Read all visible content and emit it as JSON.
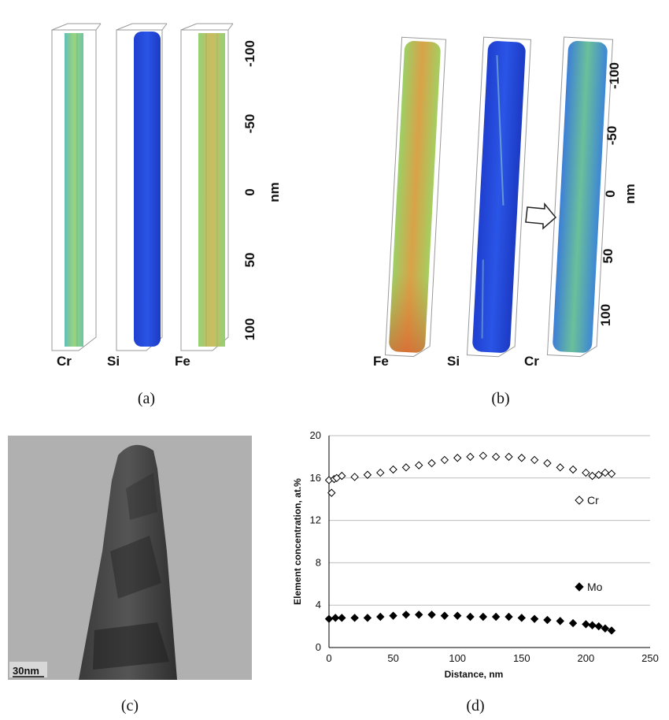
{
  "panel_a": {
    "caption": "(a)",
    "elements": [
      "Cr",
      "Si",
      "Fe"
    ],
    "axis_ticks": [
      "-100",
      "-50",
      "0",
      "50",
      "100"
    ],
    "axis_unit": "nm"
  },
  "panel_b": {
    "caption": "(b)",
    "elements": [
      "Fe",
      "Si",
      "Cr"
    ],
    "axis_ticks": [
      "-100",
      "-50",
      "0",
      "50",
      "100"
    ],
    "axis_unit": "nm"
  },
  "panel_c": {
    "caption": "(c)",
    "scale_bar": "30nm"
  },
  "panel_d": {
    "caption": "(d)"
  },
  "chart_data": {
    "type": "scatter",
    "xlabel": "Distance, nm",
    "ylabel": "Element concentration, at.%",
    "xlim": [
      0,
      250
    ],
    "ylim": [
      0,
      20
    ],
    "x_ticks": [
      "0",
      "50",
      "100",
      "150",
      "200",
      "250"
    ],
    "y_ticks": [
      "0",
      "4",
      "8",
      "12",
      "16",
      "20"
    ],
    "grid": "horizontal",
    "legend": [
      {
        "name": "Cr",
        "marker": "open-diamond"
      },
      {
        "name": "Mo",
        "marker": "filled-diamond"
      }
    ],
    "series": [
      {
        "name": "Cr",
        "marker": "open-diamond",
        "x": [
          0,
          2,
          4,
          6,
          10,
          20,
          30,
          40,
          50,
          60,
          70,
          80,
          90,
          100,
          110,
          120,
          130,
          140,
          150,
          160,
          170,
          180,
          190,
          200,
          205,
          210,
          215,
          220
        ],
        "y": [
          15.8,
          14.6,
          15.9,
          16.0,
          16.2,
          16.1,
          16.3,
          16.5,
          16.8,
          17.0,
          17.2,
          17.4,
          17.7,
          17.9,
          18.0,
          18.1,
          18.0,
          18.0,
          17.9,
          17.7,
          17.4,
          17.0,
          16.8,
          16.5,
          16.2,
          16.3,
          16.5,
          16.4
        ]
      },
      {
        "name": "Mo",
        "marker": "filled-diamond",
        "x": [
          0,
          5,
          10,
          20,
          30,
          40,
          50,
          60,
          70,
          80,
          90,
          100,
          110,
          120,
          130,
          140,
          150,
          160,
          170,
          180,
          190,
          200,
          205,
          210,
          215,
          220
        ],
        "y": [
          2.7,
          2.8,
          2.8,
          2.8,
          2.8,
          2.9,
          3.0,
          3.1,
          3.1,
          3.1,
          3.0,
          3.0,
          2.9,
          2.9,
          2.9,
          2.9,
          2.8,
          2.7,
          2.6,
          2.5,
          2.3,
          2.2,
          2.1,
          2.0,
          1.8,
          1.6
        ]
      }
    ]
  }
}
